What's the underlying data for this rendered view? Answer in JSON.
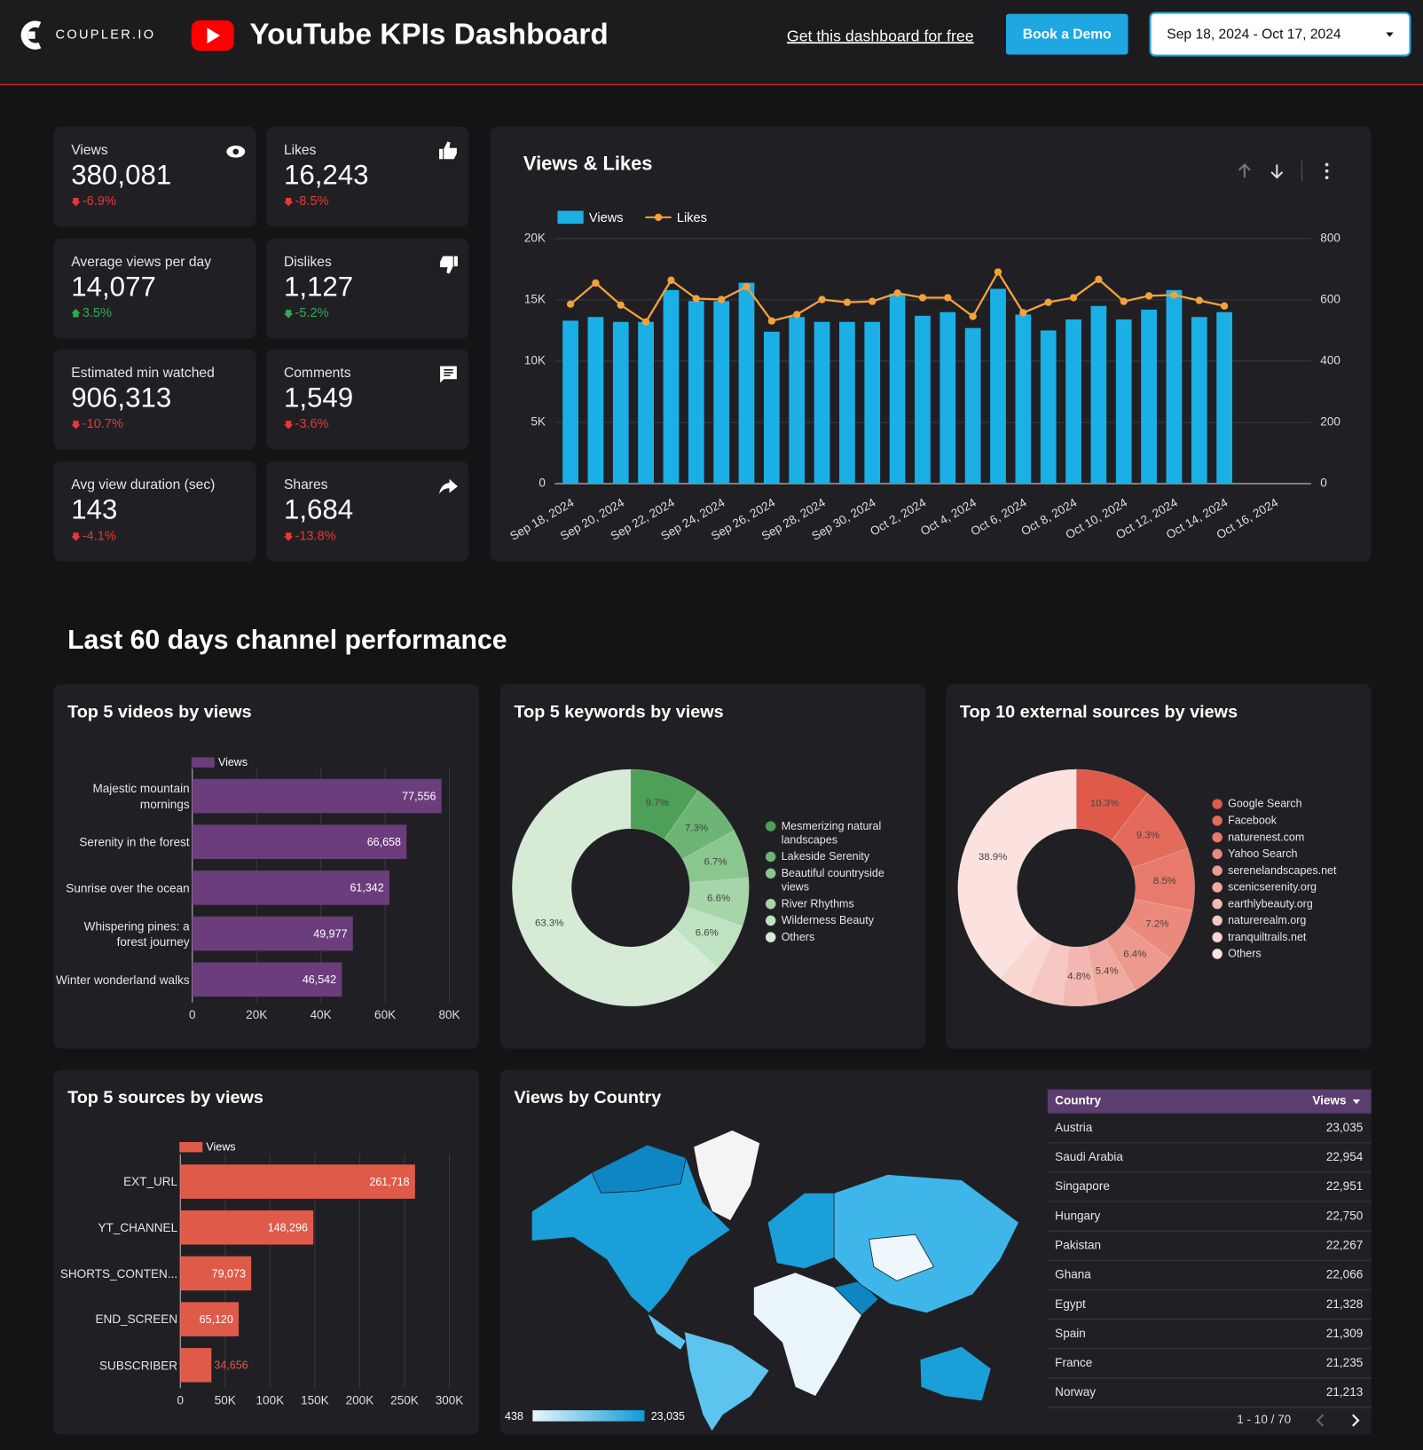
{
  "header": {
    "logo": "COUPLER.IO",
    "title": "YouTube  KPIs Dashboard",
    "link": "Get this dashboard for free",
    "button": "Book a Demo",
    "date_range": "Sep 18, 2024 - Oct 17, 2024"
  },
  "kpis": [
    {
      "label": "Views",
      "value": "380,081",
      "change": "-6.9%",
      "arrow": "down",
      "color": "#e53935",
      "icon": "eye"
    },
    {
      "label": "Likes",
      "value": "16,243",
      "change": "-8.5%",
      "arrow": "down",
      "color": "#e53935",
      "icon": "like"
    },
    {
      "label": "Average views per day",
      "value": "14,077",
      "change": "3.5%",
      "arrow": "up",
      "color": "#34a853",
      "icon": null
    },
    {
      "label": "Dislikes",
      "value": "1,127",
      "change": "-5.2%",
      "arrow": "down",
      "color": "#34a853",
      "icon": "dislike"
    },
    {
      "label": "Estimated min watched",
      "value": "906,313",
      "change": "-10.7%",
      "arrow": "down",
      "color": "#e53935",
      "icon": null
    },
    {
      "label": "Comments",
      "value": "1,549",
      "change": "-3.6%",
      "arrow": "down",
      "color": "#e53935",
      "icon": "comment"
    },
    {
      "label": "Avg view duration (sec)",
      "value": "143",
      "change": "-4.1%",
      "arrow": "down",
      "color": "#e53935",
      "icon": null
    },
    {
      "label": "Shares",
      "value": "1,684",
      "change": "-13.8%",
      "arrow": "down",
      "color": "#e53935",
      "icon": "share"
    }
  ],
  "section_title": "Last 60 days channel performance",
  "chart_data": [
    {
      "type": "combo",
      "title": "Views & Likes",
      "categories": [
        "Sep 18, 2024",
        null,
        "Sep 20, 2024",
        null,
        "Sep 22, 2024",
        null,
        "Sep 24, 2024",
        null,
        "Sep 26, 2024",
        null,
        "Sep 28, 2024",
        null,
        "Sep 30, 2024",
        null,
        "Oct 2, 2024",
        null,
        "Oct 4, 2024",
        null,
        "Oct 6, 2024",
        null,
        "Oct 8, 2024",
        null,
        "Oct 10, 2024",
        null,
        "Oct 12, 2024",
        null,
        "Oct 14, 2024",
        null,
        "Oct 16, 2024"
      ],
      "series": [
        {
          "name": "Views",
          "type": "bar",
          "color": "#1ab0e6",
          "values": [
            13300,
            13600,
            13200,
            13200,
            15800,
            14900,
            14900,
            16400,
            12400,
            13600,
            13200,
            13200,
            13200,
            15500,
            13700,
            14000,
            12700,
            15900,
            13800,
            12500,
            13400,
            14500,
            13400,
            14200,
            15800,
            13600,
            14000,
            null,
            null
          ]
        },
        {
          "name": "Likes",
          "type": "line",
          "axis": "y2",
          "color": "#f2a23a",
          "values": [
            586,
            655,
            583,
            528,
            664,
            604,
            601,
            643,
            531,
            552,
            601,
            592,
            595,
            622,
            607,
            607,
            546,
            691,
            558,
            592,
            607,
            667,
            595,
            613,
            616,
            598,
            580,
            null,
            null
          ]
        }
      ],
      "ylim": [
        0,
        20000
      ],
      "yticks": [
        0,
        {
          "value": 5000,
          "label": "5K"
        },
        {
          "value": 10000,
          "label": "10K"
        },
        {
          "value": 15000,
          "label": "15K"
        },
        {
          "value": 20000,
          "label": "20K"
        }
      ],
      "y2lim": [
        0,
        800
      ],
      "y2ticks": [
        0,
        200,
        400,
        600,
        800
      ],
      "grid": true,
      "legend": "top-left"
    },
    {
      "type": "hbar",
      "title": "Top 5 videos by views",
      "categories": [
        "Majestic mountain mornings",
        "Serenity in the forest",
        "Sunrise over the ocean",
        "Whispering pines: a forest journey",
        "Winter wonderland walks"
      ],
      "series": [
        {
          "name": "Views",
          "color": "#6b3d7d",
          "values": [
            77556,
            66658,
            61342,
            49977,
            46542
          ],
          "value_labels": [
            "77,556",
            "66,658",
            "61,342",
            "49,977",
            "46,542"
          ]
        }
      ],
      "xlim": [
        0,
        80000
      ],
      "xticks": [
        0,
        {
          "value": 20000,
          "label": "20K"
        },
        {
          "value": 40000,
          "label": "40K"
        },
        {
          "value": 60000,
          "label": "60K"
        },
        {
          "value": 80000,
          "label": "80K"
        }
      ],
      "grid": true,
      "legend": "top-left"
    },
    {
      "type": "donut",
      "title": "Top 5 keywords by views",
      "categories": [
        "Mesmerizing natural landscapes",
        "Lakeside Serenity",
        "Beautiful countryside views",
        "River Rhythms",
        "Wilderness Beauty",
        "Others"
      ],
      "values": [
        9.7,
        7.3,
        6.7,
        6.6,
        6.6,
        63.3
      ],
      "value_labels": [
        "9.7%",
        "7.3%",
        "6.7%",
        "6.6%",
        "6.6%",
        "63.3%"
      ],
      "colors": [
        "#4e9f57",
        "#6cb574",
        "#8ac78f",
        "#a5d5a8",
        "#bfe2c1",
        "#d5ebd6"
      ],
      "legend": "right"
    },
    {
      "type": "donut",
      "title": "Top 10 external sources by views",
      "categories": [
        "Google Search",
        "Facebook",
        "naturenest.com",
        "Yahoo Search",
        "serenelandscapes.net",
        "scenicserenity.org",
        "earthlybeauty.org",
        "naturerealm.org",
        "tranquiltrails.net",
        "Others"
      ],
      "values": [
        10.3,
        9.3,
        8.5,
        7.2,
        6.4,
        5.4,
        4.8,
        4.7,
        4.5,
        38.9
      ],
      "value_labels": [
        "10.3%",
        "9.3%",
        "8.5%",
        "7.2%",
        "6.4%",
        "5.4%",
        "4.8%",
        null,
        null,
        "38.9%"
      ],
      "colors": [
        "#e05a4a",
        "#e46a5b",
        "#e77a6c",
        "#ea897c",
        "#ed998e",
        "#f0a9a0",
        "#f3b8b1",
        "#f6c7c2",
        "#f9d6d2",
        "#fbe2df"
      ],
      "legend": "right"
    },
    {
      "type": "hbar",
      "title": "Top 5 sources by views",
      "categories": [
        "EXT_URL",
        "YT_CHANNEL",
        "SHORTS_CONTEN...",
        "END_SCREEN",
        "SUBSCRIBER"
      ],
      "series": [
        {
          "name": "Views",
          "color": "#e05a4a",
          "values": [
            261718,
            148296,
            79073,
            65120,
            34656
          ],
          "value_labels": [
            "261,718",
            "148,296",
            "79,073",
            "65,120",
            "34,656"
          ]
        }
      ],
      "xlim": [
        0,
        300000
      ],
      "xticks": [
        0,
        {
          "value": 50000,
          "label": "50K"
        },
        {
          "value": 100000,
          "label": "100K"
        },
        {
          "value": 150000,
          "label": "150K"
        },
        {
          "value": 200000,
          "label": "200K"
        },
        {
          "value": 250000,
          "label": "250K"
        },
        {
          "value": 300000,
          "label": "300K"
        }
      ],
      "grid": true,
      "legend": "top-left"
    },
    {
      "type": "choropleth",
      "title": "Views by Country",
      "scale": [
        438,
        {
          "value": 23035,
          "label": "23,035"
        }
      ],
      "colors": [
        "#e8f6fc",
        "#0f9ad6"
      ]
    }
  ],
  "table": {
    "columns": [
      "Country",
      "Views"
    ],
    "rows": [
      [
        "Austria",
        "23,035"
      ],
      [
        "Saudi Arabia",
        "22,954"
      ],
      [
        "Singapore",
        "22,951"
      ],
      [
        "Hungary",
        "22,750"
      ],
      [
        "Pakistan",
        "22,267"
      ],
      [
        "Ghana",
        "22,066"
      ],
      [
        "Egypt",
        "21,328"
      ],
      [
        "Spain",
        "21,309"
      ],
      [
        "France",
        "21,235"
      ],
      [
        "Norway",
        "21,213"
      ]
    ],
    "pagination": "1 - 10 / 70"
  }
}
